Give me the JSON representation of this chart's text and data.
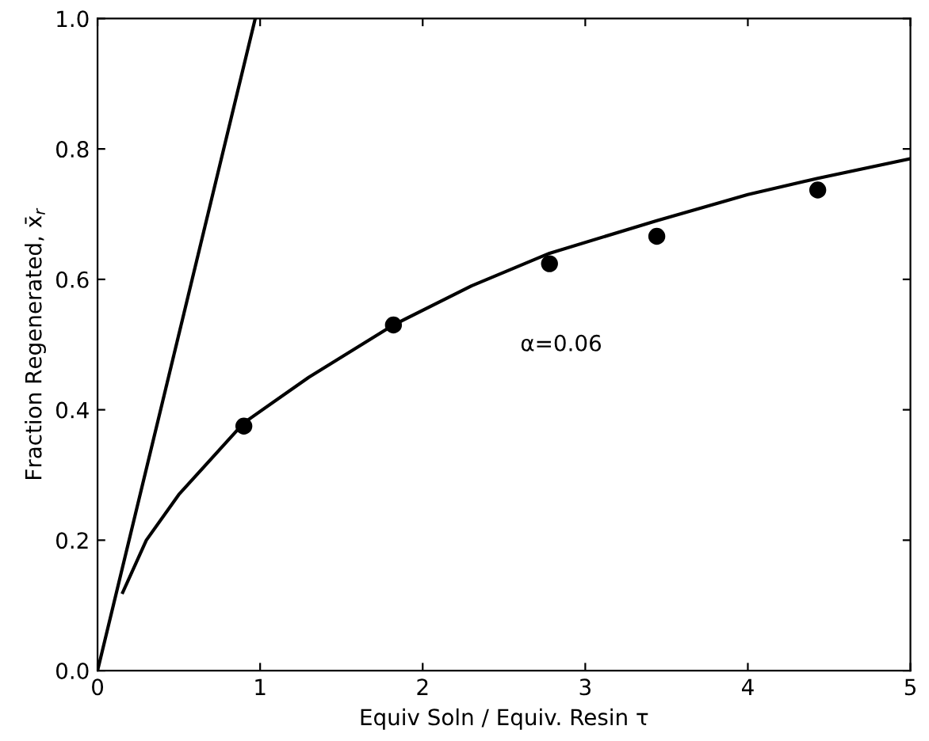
{
  "chart_data": {
    "type": "line",
    "xlabel": "Equiv Soln / Equiv. Resin τ",
    "ylabel": "Fraction Regenerated, x̄$_{r}$",
    "series": [
      {
        "color": "#000000",
        "x": [
          0,
          0.97
        ],
        "values": [
          0,
          1.0
        ]
      },
      {
        "color": "#000000",
        "x": [
          0.155,
          0.3,
          0.5,
          0.9,
          1.3,
          1.82,
          2.3,
          2.78,
          3.44,
          4.0,
          4.43,
          5.0
        ],
        "values": [
          0.12,
          0.2,
          0.27,
          0.38,
          0.45,
          0.53,
          0.59,
          0.64,
          0.69,
          0.73,
          0.755,
          0.785
        ]
      },
      {
        "type": "scatter",
        "color": "#000000",
        "marker": "circle",
        "x": [
          0.9,
          1.82,
          2.78,
          3.44,
          4.43
        ],
        "values": [
          0.375,
          0.53,
          0.624,
          0.666,
          0.737
        ]
      }
    ],
    "annotations": [
      "α=0.06"
    ],
    "xlim": [
      0,
      5
    ],
    "ylim": [
      0,
      1.0
    ],
    "xticks": [
      0,
      1,
      2,
      3,
      4,
      5
    ],
    "yticks": [
      {
        "value": 0,
        "label": "0.0"
      },
      {
        "value": 0.2,
        "label": "0.2"
      },
      {
        "value": 0.4,
        "label": "0.4"
      },
      {
        "value": 0.6,
        "label": "0.6"
      },
      {
        "value": 0.8,
        "label": "0.8"
      },
      {
        "value": 1.0,
        "label": "1.0"
      }
    ],
    "grid": false,
    "legend": false
  }
}
